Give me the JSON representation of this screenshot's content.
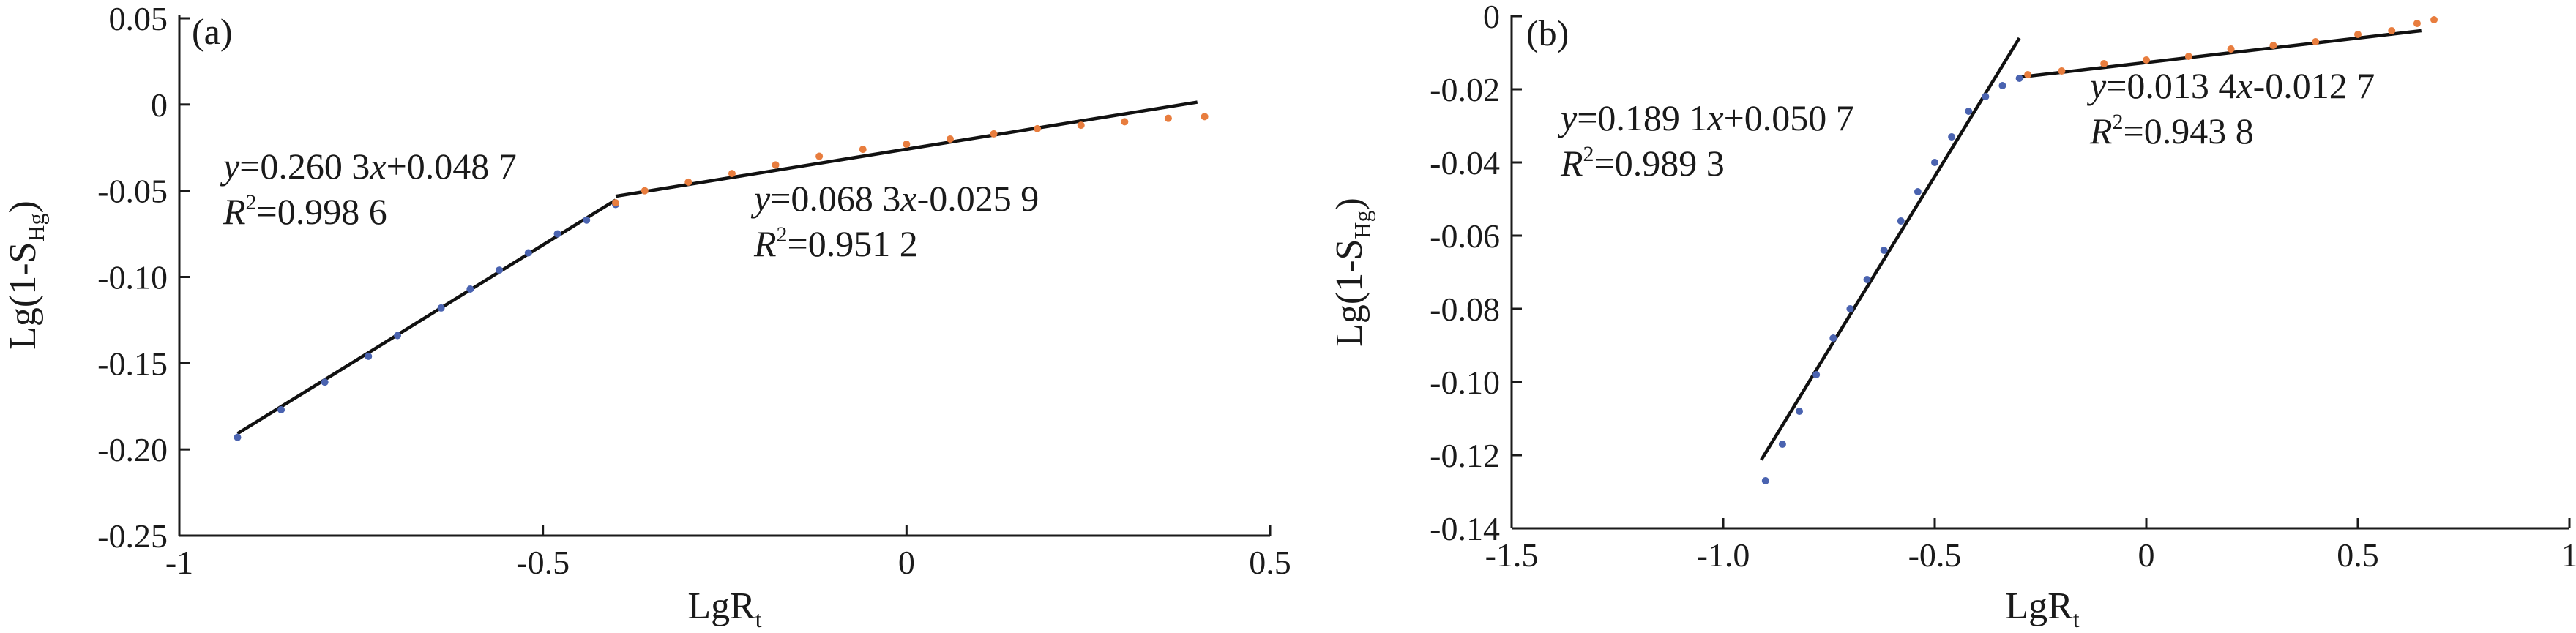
{
  "chart_data": [
    {
      "type": "scatter",
      "panel_label": "(a)",
      "xlabel": "LgR",
      "xlabel_sub": "t",
      "ylabel": "Lg(1-S",
      "ylabel_sub": "Hg",
      "ylabel_close": ")",
      "xlim": [
        -1,
        0.5
      ],
      "ylim": [
        -0.25,
        0.05
      ],
      "x_ticks": [
        -1,
        -0.5,
        0,
        0.5
      ],
      "x_tick_labels": [
        "-1",
        "-0.5",
        "0",
        "0.5"
      ],
      "y_ticks": [
        -0.25,
        -0.2,
        -0.15,
        -0.1,
        -0.05,
        0,
        0.05
      ],
      "y_tick_labels": [
        "-0.25",
        "-0.20",
        "-0.15",
        "-0.10",
        "-0.05",
        "0",
        "0.05"
      ],
      "series": [
        {
          "color": "#4a63b0",
          "points": [
            [
              -0.92,
              -0.193
            ],
            [
              -0.86,
              -0.177
            ],
            [
              -0.8,
              -0.161
            ],
            [
              -0.74,
              -0.146
            ],
            [
              -0.7,
              -0.134
            ],
            [
              -0.64,
              -0.118
            ],
            [
              -0.6,
              -0.107
            ],
            [
              -0.56,
              -0.096
            ],
            [
              -0.52,
              -0.086
            ],
            [
              -0.48,
              -0.075
            ],
            [
              -0.44,
              -0.067
            ],
            [
              -0.4,
              -0.058
            ]
          ]
        },
        {
          "color": "#e87d3e",
          "points": [
            [
              -0.4,
              -0.057
            ],
            [
              -0.36,
              -0.05
            ],
            [
              -0.3,
              -0.045
            ],
            [
              -0.24,
              -0.04
            ],
            [
              -0.18,
              -0.035
            ],
            [
              -0.12,
              -0.03
            ],
            [
              -0.06,
              -0.026
            ],
            [
              0.0,
              -0.023
            ],
            [
              0.06,
              -0.02
            ],
            [
              0.12,
              -0.017
            ],
            [
              0.18,
              -0.014
            ],
            [
              0.24,
              -0.012
            ],
            [
              0.3,
              -0.01
            ],
            [
              0.36,
              -0.008
            ],
            [
              0.41,
              -0.007
            ]
          ]
        }
      ],
      "fit_lines": [
        {
          "x": [
            -0.92,
            -0.4
          ],
          "y": [
            -0.1908,
            -0.0554
          ]
        },
        {
          "x": [
            -0.4,
            0.4
          ],
          "y": [
            -0.0532,
            0.0014
          ]
        }
      ],
      "annotations": [
        {
          "eq_y": "y",
          "eq_rest": "=0.260 3",
          "eq_x": "x",
          "eq_tail": "+0.048 7",
          "r2_R": "R",
          "r2_exp": "2",
          "r2_val": "=0.998 6"
        },
        {
          "eq_y": "y",
          "eq_rest": "=0.068 3",
          "eq_x": "x",
          "eq_tail": "-0.025 9",
          "r2_R": "R",
          "r2_exp": "2",
          "r2_val": "=0.951 2"
        }
      ]
    },
    {
      "type": "scatter",
      "panel_label": "(b)",
      "xlabel": "LgR",
      "xlabel_sub": "t",
      "ylabel": "Lg(1-S",
      "ylabel_sub": "Hg",
      "ylabel_close": ")",
      "xlim": [
        -1.5,
        1
      ],
      "ylim": [
        -0.14,
        0
      ],
      "x_ticks": [
        -1.5,
        -1,
        -0.5,
        0,
        0.5,
        1
      ],
      "x_tick_labels": [
        "-1.5",
        "-1.0",
        "-0.5",
        "0",
        "0.5",
        "1"
      ],
      "y_ticks": [
        -0.14,
        -0.12,
        -0.1,
        -0.08,
        -0.06,
        -0.04,
        -0.02,
        0
      ],
      "y_tick_labels": [
        "-0.14",
        "-0.12",
        "-0.10",
        "-0.08",
        "-0.06",
        "-0.04",
        "-0.02",
        "0"
      ],
      "series": [
        {
          "color": "#4a63b0",
          "points": [
            [
              -0.9,
              -0.127
            ],
            [
              -0.86,
              -0.117
            ],
            [
              -0.82,
              -0.108
            ],
            [
              -0.78,
              -0.098
            ],
            [
              -0.74,
              -0.088
            ],
            [
              -0.7,
              -0.08
            ],
            [
              -0.66,
              -0.072
            ],
            [
              -0.62,
              -0.064
            ],
            [
              -0.58,
              -0.056
            ],
            [
              -0.54,
              -0.048
            ],
            [
              -0.5,
              -0.04
            ],
            [
              -0.46,
              -0.033
            ],
            [
              -0.42,
              -0.026
            ],
            [
              -0.38,
              -0.022
            ],
            [
              -0.34,
              -0.019
            ],
            [
              -0.3,
              -0.017
            ]
          ]
        },
        {
          "color": "#e87d3e",
          "points": [
            [
              -0.28,
              -0.016
            ],
            [
              -0.2,
              -0.015
            ],
            [
              -0.1,
              -0.013
            ],
            [
              0.0,
              -0.012
            ],
            [
              0.1,
              -0.011
            ],
            [
              0.2,
              -0.009
            ],
            [
              0.3,
              -0.008
            ],
            [
              0.4,
              -0.007
            ],
            [
              0.5,
              -0.005
            ],
            [
              0.58,
              -0.004
            ],
            [
              0.64,
              -0.002
            ],
            [
              0.68,
              -0.001
            ]
          ]
        }
      ],
      "fit_lines": [
        {
          "x": [
            -0.91,
            -0.3
          ],
          "y": [
            -0.1213,
            -0.006
          ]
        },
        {
          "x": [
            -0.3,
            0.65
          ],
          "y": [
            -0.0167,
            -0.004
          ]
        }
      ],
      "annotations": [
        {
          "eq_y": "y",
          "eq_rest": "=0.189 1",
          "eq_x": "x",
          "eq_tail": "+0.050 7",
          "r2_R": "R",
          "r2_exp": "2",
          "r2_val": "=0.989 3"
        },
        {
          "eq_y": "y",
          "eq_rest": "=0.013 4",
          "eq_x": "x",
          "eq_tail": "-0.012 7",
          "r2_R": "R",
          "r2_exp": "2",
          "r2_val": "=0.943 8"
        }
      ]
    }
  ]
}
